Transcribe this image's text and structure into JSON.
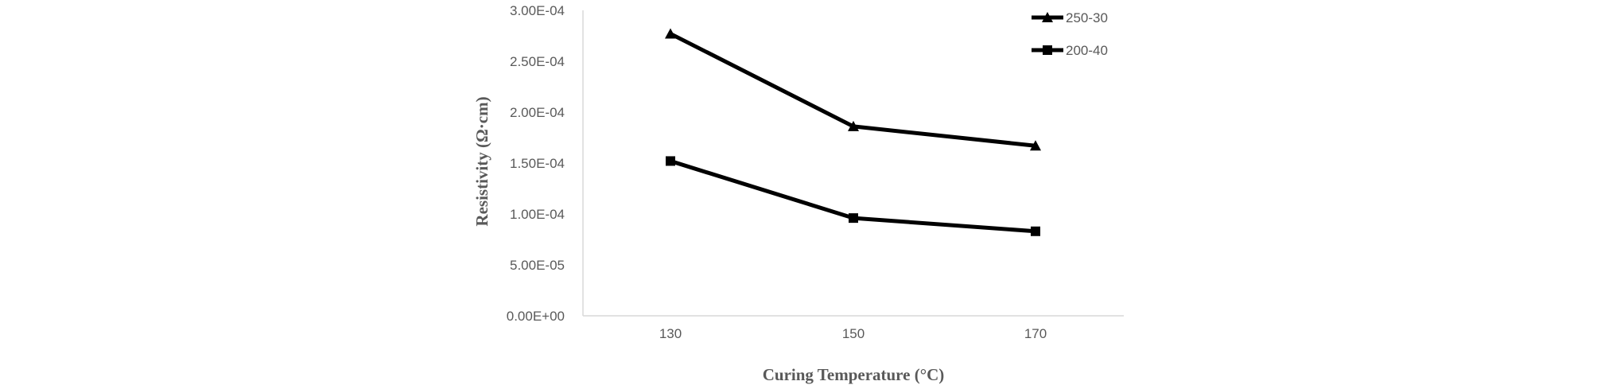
{
  "chart_data": {
    "type": "line",
    "title": "",
    "xlabel": "Curing Temperature  (°C)",
    "ylabel": "Resistivity (Ω·cm)",
    "categories": [
      "130",
      "150",
      "170"
    ],
    "y_ticks": [
      "0.00E+00",
      "5.00E-05",
      "1.00E-04",
      "1.50E-04",
      "2.00E-04",
      "2.50E-04",
      "3.00E-04"
    ],
    "ylim": [
      0,
      0.0003
    ],
    "grid": false,
    "legend_position": "top-right",
    "series": [
      {
        "name": "250-30",
        "marker": "triangle",
        "color": "#000000",
        "values": [
          0.000277,
          0.000186,
          0.000167
        ]
      },
      {
        "name": "200-40",
        "marker": "square",
        "color": "#000000",
        "values": [
          0.000152,
          9.6e-05,
          8.3e-05
        ]
      }
    ]
  }
}
